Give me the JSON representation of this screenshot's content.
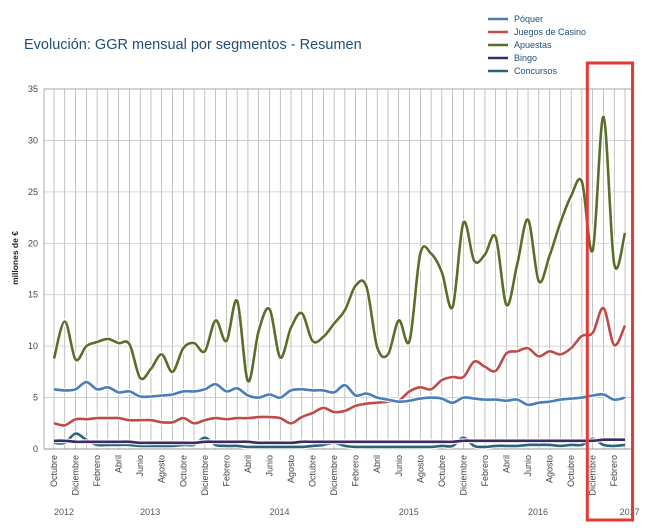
{
  "chart_data": {
    "type": "line",
    "title": "Evolución: GGR mensual por segmentos - Resumen",
    "ylabel": "millones de €",
    "ylim": [
      0,
      35
    ],
    "yticks": [
      0,
      5,
      10,
      15,
      20,
      25,
      30,
      35
    ],
    "grid": true,
    "legend_position": "top-right",
    "x": [
      "Oct 2012",
      "Nov 2012",
      "Dic 2012",
      "Ene 2013",
      "Feb 2013",
      "Mar 2013",
      "Abr 2013",
      "May 2013",
      "Jun 2013",
      "Jul 2013",
      "Ago 2013",
      "Sep 2013",
      "Oct 2013",
      "Nov 2013",
      "Dic 2013",
      "Ene 2014",
      "Feb 2014",
      "Mar 2014",
      "Abr 2014",
      "May 2014",
      "Jun 2014",
      "Jul 2014",
      "Ago 2014",
      "Sep 2014",
      "Oct 2014",
      "Nov 2014",
      "Dic 2014",
      "Ene 2015",
      "Feb 2015",
      "Mar 2015",
      "Abr 2015",
      "May 2015",
      "Jun 2015",
      "Jul 2015",
      "Ago 2015",
      "Sep 2015",
      "Oct 2015",
      "Nov 2015",
      "Dic 2015",
      "Ene 2016",
      "Feb 2016",
      "Mar 2016",
      "Abr 2016",
      "May 2016",
      "Jun 2016",
      "Jul 2016",
      "Ago 2016",
      "Sep 2016",
      "Oct 2016",
      "Nov 2016",
      "Dic 2016",
      "Ene 2017",
      "Feb 2017",
      "Mar 2017"
    ],
    "x_tick_labels": [
      "Octubre",
      "Diciembre",
      "Febrero",
      "Abril",
      "Junio",
      "Agosto",
      "Octubre",
      "Diciembre",
      "Febrero",
      "Abril",
      "Junio",
      "Agosto",
      "Octubre",
      "Diciembre",
      "Febrero",
      "Abril",
      "Junio",
      "Agosto",
      "Octubre",
      "Diciembre",
      "Febrero",
      "Abril",
      "Junio",
      "Agosto",
      "Octubre",
      "Diciembre",
      "Febrero"
    ],
    "years": [
      {
        "label": "2012",
        "index": 0
      },
      {
        "label": "2013",
        "index": 8
      },
      {
        "label": "2014",
        "index": 20
      },
      {
        "label": "2015",
        "index": 32
      },
      {
        "label": "2016",
        "index": 44
      },
      {
        "label": "2017",
        "index": 52.5
      }
    ],
    "highlight": {
      "from_index": 49.5,
      "to_index": 53.7,
      "color": "#e53935"
    },
    "series": [
      {
        "name": "Póquer",
        "color": "#4a7ebb",
        "values": [
          5.8,
          5.7,
          5.8,
          6.5,
          5.8,
          6.0,
          5.5,
          5.6,
          5.1,
          5.1,
          5.2,
          5.3,
          5.6,
          5.6,
          5.8,
          6.3,
          5.6,
          5.9,
          5.2,
          5.0,
          5.3,
          5.0,
          5.7,
          5.8,
          5.7,
          5.7,
          5.5,
          6.2,
          5.2,
          5.4,
          5.0,
          4.8,
          4.6,
          4.7,
          4.9,
          5.0,
          4.9,
          4.5,
          5.0,
          4.9,
          4.8,
          4.8,
          4.7,
          4.8,
          4.3,
          4.5,
          4.6,
          4.8,
          4.9,
          5.0,
          5.2,
          5.3,
          4.8,
          5.0
        ]
      },
      {
        "name": "Juegos de Casino",
        "color": "#be4b48",
        "values": [
          2.5,
          2.3,
          2.9,
          2.9,
          3.0,
          3.0,
          3.0,
          2.8,
          2.8,
          2.8,
          2.6,
          2.6,
          3.0,
          2.5,
          2.8,
          3.0,
          2.9,
          3.0,
          3.0,
          3.1,
          3.1,
          3.0,
          2.5,
          3.1,
          3.5,
          4.0,
          3.6,
          3.7,
          4.2,
          4.4,
          4.5,
          4.6,
          4.7,
          5.6,
          6.0,
          5.8,
          6.7,
          7.0,
          7.0,
          8.5,
          8.0,
          7.6,
          9.3,
          9.5,
          9.8,
          9.0,
          9.5,
          9.2,
          9.8,
          11.0,
          11.3,
          13.7,
          10.1,
          12.0
        ]
      },
      {
        "name": "Apuestas",
        "color": "#5a6e2a",
        "values": [
          8.8,
          12.4,
          8.7,
          10.0,
          10.4,
          10.7,
          10.3,
          10.2,
          6.9,
          7.8,
          9.2,
          7.5,
          9.8,
          10.3,
          9.5,
          12.5,
          10.5,
          14.4,
          6.6,
          11.5,
          13.6,
          8.9,
          11.8,
          13.2,
          10.5,
          10.9,
          12.2,
          13.5,
          15.9,
          15.8,
          9.9,
          9.2,
          12.5,
          10.5,
          19.0,
          19.0,
          17.2,
          13.8,
          22.0,
          18.3,
          18.9,
          20.6,
          14.0,
          18.0,
          22.3,
          16.3,
          18.8,
          22.0,
          24.6,
          26.0,
          19.3,
          32.3,
          18.0,
          21.0
        ]
      },
      {
        "name": "Bingo",
        "color": "#3b2a63",
        "values": [
          0.8,
          0.8,
          0.7,
          0.7,
          0.7,
          0.7,
          0.7,
          0.7,
          0.6,
          0.6,
          0.6,
          0.6,
          0.6,
          0.6,
          0.7,
          0.7,
          0.7,
          0.7,
          0.7,
          0.6,
          0.6,
          0.6,
          0.6,
          0.7,
          0.7,
          0.7,
          0.7,
          0.7,
          0.7,
          0.7,
          0.7,
          0.7,
          0.7,
          0.7,
          0.7,
          0.7,
          0.7,
          0.7,
          0.8,
          0.8,
          0.8,
          0.8,
          0.8,
          0.8,
          0.8,
          0.8,
          0.8,
          0.8,
          0.8,
          0.8,
          0.8,
          0.9,
          0.9,
          0.9
        ]
      },
      {
        "name": "Concursos",
        "color": "#2b6478",
        "values": [
          0.6,
          0.6,
          1.5,
          0.9,
          0.4,
          0.4,
          0.4,
          0.4,
          0.3,
          0.3,
          0.3,
          0.3,
          0.4,
          0.4,
          1.1,
          0.4,
          0.3,
          0.3,
          0.2,
          0.2,
          0.2,
          0.2,
          0.2,
          0.2,
          0.3,
          0.4,
          0.6,
          0.3,
          0.2,
          0.2,
          0.2,
          0.2,
          0.2,
          0.2,
          0.2,
          0.2,
          0.3,
          0.3,
          1.1,
          0.3,
          0.2,
          0.3,
          0.3,
          0.3,
          0.4,
          0.4,
          0.4,
          0.3,
          0.4,
          0.4,
          1.0,
          0.4,
          0.3,
          0.4
        ]
      }
    ]
  }
}
